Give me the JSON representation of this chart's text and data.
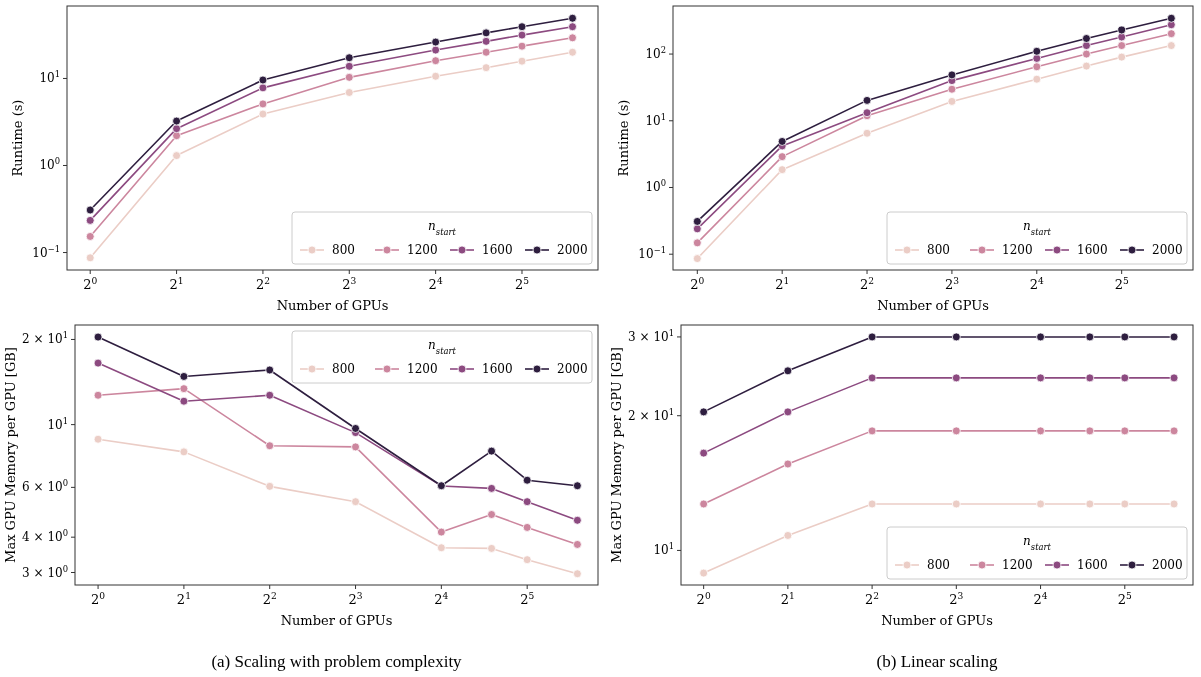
{
  "chart_data": [
    {
      "type": "line",
      "xlabel": "Number of GPUs",
      "ylabel": "Runtime (s)",
      "log": "xy",
      "x": [
        1,
        2,
        4,
        8,
        16,
        24,
        32,
        48
      ],
      "xlim": [
        0.83,
        58.9
      ],
      "xticks": [
        {
          "value": 1,
          "label": "2$^{0}$"
        },
        {
          "value": 2,
          "label": "2$^{1}$"
        },
        {
          "value": 4,
          "label": "2$^{2}$"
        },
        {
          "value": 8,
          "label": "2$^{3}$"
        },
        {
          "value": 16,
          "label": "2$^{4}$"
        },
        {
          "value": 32,
          "label": "2$^{5}$"
        }
      ],
      "ylim": [
        0.063,
        68
      ],
      "yticks": [
        {
          "value": 0.1,
          "label": "10$^{−1}$"
        },
        {
          "value": 1,
          "label": "10$^{0}$"
        },
        {
          "value": 10,
          "label": "10$^{1}$"
        }
      ],
      "grid": false,
      "marker": "circle",
      "line_style": "solid",
      "legend": "bottom right",
      "legend_title": "n$_{start}$",
      "series": [
        {
          "name": "800",
          "color": "#ebcdc6",
          "values": [
            0.087,
            1.3,
            3.9,
            6.9,
            10.6,
            13.3,
            15.8,
            20
          ]
        },
        {
          "name": "1200",
          "color": "#cc869e",
          "values": [
            0.153,
            2.2,
            5.1,
            10.3,
            16,
            20,
            23.5,
            29.3
          ]
        },
        {
          "name": "1600",
          "color": "#8c4a80",
          "values": [
            0.234,
            2.65,
            7.8,
            13.8,
            21.2,
            26.7,
            31.5,
            39.3
          ]
        },
        {
          "name": "2000",
          "color": "#2e1e3f",
          "values": [
            0.308,
            3.24,
            9.6,
            17.3,
            26.2,
            33.4,
            39.3,
            49.2
          ]
        }
      ]
    },
    {
      "type": "line",
      "xlabel": "Number of GPUs",
      "ylabel": "Runtime (s)",
      "log": "xy",
      "x": [
        1,
        2,
        4,
        8,
        16,
        24,
        32,
        48
      ],
      "xlim": [
        0.82,
        57.3
      ],
      "xticks": [
        {
          "value": 1,
          "label": "2$^{0}$"
        },
        {
          "value": 2,
          "label": "2$^{1}$"
        },
        {
          "value": 4,
          "label": "2$^{2}$"
        },
        {
          "value": 8,
          "label": "2$^{3}$"
        },
        {
          "value": 16,
          "label": "2$^{4}$"
        },
        {
          "value": 32,
          "label": "2$^{5}$"
        }
      ],
      "ylim": [
        0.058,
        525
      ],
      "yticks": [
        {
          "value": 0.1,
          "label": "10$^{−1}$"
        },
        {
          "value": 1,
          "label": "10$^{0}$"
        },
        {
          "value": 10,
          "label": "10$^{1}$"
        },
        {
          "value": 100,
          "label": "10$^{2}$"
        }
      ],
      "grid": false,
      "marker": "circle",
      "line_style": "solid",
      "legend": "bottom right",
      "legend_title": "n$_{start}$",
      "series": [
        {
          "name": "800",
          "color": "#ebcdc6",
          "values": [
            0.086,
            1.85,
            6.5,
            19.5,
            42,
            66,
            90,
            134
          ]
        },
        {
          "name": "1200",
          "color": "#cc869e",
          "values": [
            0.148,
            2.9,
            11.9,
            29.7,
            64.5,
            100,
            134,
            202
          ]
        },
        {
          "name": "1600",
          "color": "#8c4a80",
          "values": [
            0.24,
            4.2,
            13.2,
            40,
            86,
            134,
            180,
            275
          ]
        },
        {
          "name": "2000",
          "color": "#2e1e3f",
          "values": [
            0.31,
            4.9,
            20.2,
            48.7,
            110,
            171,
            229,
            344
          ]
        }
      ]
    },
    {
      "type": "line",
      "xlabel": "Number of GPUs",
      "ylabel": "Max GPU Memory per GPU [GB]",
      "log": "xy",
      "x": [
        1,
        2,
        4,
        8,
        16,
        24,
        32,
        48
      ],
      "xlim": [
        0.83,
        56.7
      ],
      "xticks": [
        {
          "value": 1,
          "label": "2$^{0}$"
        },
        {
          "value": 2,
          "label": "2$^{1}$"
        },
        {
          "value": 4,
          "label": "2$^{2}$"
        },
        {
          "value": 8,
          "label": "2$^{3}$"
        },
        {
          "value": 16,
          "label": "2$^{4}$"
        },
        {
          "value": 32,
          "label": "2$^{5}$"
        }
      ],
      "ylim": [
        2.71,
        22.5
      ],
      "yticks": [
        {
          "value": 3,
          "label": "3 × 10$^{0}$"
        },
        {
          "value": 4,
          "label": "4 × 10$^{0}$"
        },
        {
          "value": 6,
          "label": "6 × 10$^{0}$"
        },
        {
          "value": 10,
          "label": "10$^{1}$"
        },
        {
          "value": 20,
          "label": "2 × 10$^{1}$"
        }
      ],
      "grid": false,
      "marker": "circle",
      "line_style": "solid",
      "legend": "top right",
      "legend_title": "n$_{start}$",
      "annotations": [
        "(a) Scaling with problem complexity"
      ],
      "series": [
        {
          "name": "800",
          "color": "#ebcdc6",
          "values": [
            8.88,
            8.01,
            6.05,
            5.34,
            3.67,
            3.65,
            3.33,
            2.97
          ]
        },
        {
          "name": "1200",
          "color": "#cc869e",
          "values": [
            12.7,
            13.4,
            8.42,
            8.34,
            4.17,
            4.81,
            4.33,
            3.77
          ]
        },
        {
          "name": "1600",
          "color": "#8c4a80",
          "values": [
            16.5,
            12.1,
            12.7,
            9.37,
            6.07,
            5.95,
            5.34,
            4.59
          ]
        },
        {
          "name": "2000",
          "color": "#2e1e3f",
          "values": [
            20.4,
            14.8,
            15.6,
            9.69,
            6.08,
            8.06,
            6.36,
            6.08
          ]
        }
      ]
    },
    {
      "type": "line",
      "xlabel": "Number of GPUs",
      "ylabel": "Max GPU Memory per GPU [GB]",
      "log": "xy",
      "x": [
        1,
        2,
        4,
        8,
        16,
        24,
        32,
        48
      ],
      "xlim": [
        0.83,
        56.1
      ],
      "xticks": [
        {
          "value": 1,
          "label": "2$^{0}$"
        },
        {
          "value": 2,
          "label": "2$^{1}$"
        },
        {
          "value": 4,
          "label": "2$^{2}$"
        },
        {
          "value": 8,
          "label": "2$^{3}$"
        },
        {
          "value": 16,
          "label": "2$^{4}$"
        },
        {
          "value": 32,
          "label": "2$^{5}$"
        }
      ],
      "ylim": [
        8.37,
        31.9
      ],
      "yticks": [
        {
          "value": 10,
          "label": "10$^{1}$"
        },
        {
          "value": 20,
          "label": "2 × 10$^{1}$"
        },
        {
          "value": 30,
          "label": "3 × 10$^{1}$"
        }
      ],
      "grid": false,
      "marker": "circle",
      "line_style": "solid",
      "legend": "bottom right",
      "legend_title": "n$_{start}$",
      "annotations": [
        "(b) Linear scaling"
      ],
      "series": [
        {
          "name": "800",
          "color": "#ebcdc6",
          "values": [
            8.9,
            10.8,
            12.7,
            12.7,
            12.7,
            12.7,
            12.7,
            12.7
          ]
        },
        {
          "name": "1200",
          "color": "#cc869e",
          "values": [
            12.7,
            15.6,
            18.5,
            18.5,
            18.5,
            18.5,
            18.5,
            18.5
          ]
        },
        {
          "name": "1600",
          "color": "#8c4a80",
          "values": [
            16.5,
            20.4,
            24.3,
            24.3,
            24.3,
            24.3,
            24.3,
            24.3
          ]
        },
        {
          "name": "2000",
          "color": "#2e1e3f",
          "values": [
            20.4,
            25.2,
            30,
            30,
            30,
            30,
            30,
            30
          ]
        }
      ]
    }
  ]
}
